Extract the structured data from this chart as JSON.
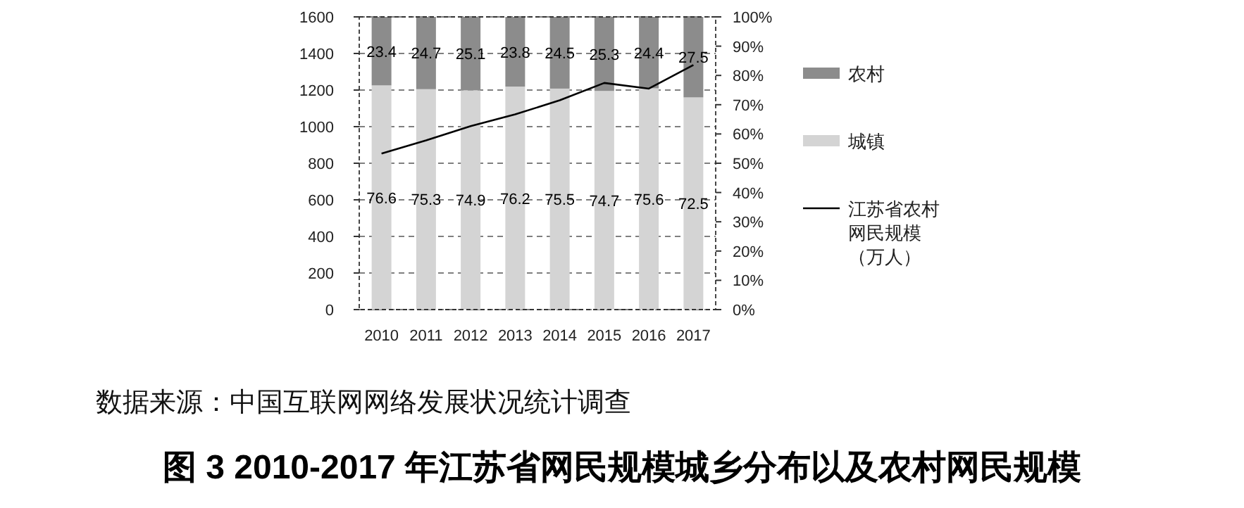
{
  "chart_data": {
    "type": "bar",
    "stacked": true,
    "title": "图 3 2010-2017 年江苏省网民规模城乡分布以及农村网民规模",
    "annotations": [
      "数据来源：中国互联网网络发展状况统计调查"
    ],
    "categories": [
      "2010",
      "2011",
      "2012",
      "2013",
      "2014",
      "2015",
      "2016",
      "2017"
    ],
    "series": [
      {
        "name": "城镇",
        "color": "#d4d4d4",
        "axis": "y2",
        "values": [
          76.6,
          75.3,
          74.9,
          76.2,
          75.5,
          74.7,
          75.6,
          72.5
        ],
        "value_labels": [
          "76.6",
          "75.3",
          "74.9",
          "76.2",
          "75.5",
          "74.7",
          "75.6",
          "72.5"
        ]
      },
      {
        "name": "农村",
        "color": "#8c8c8c",
        "axis": "y2",
        "values": [
          23.4,
          24.7,
          25.1,
          23.8,
          24.5,
          25.3,
          24.4,
          27.5
        ],
        "value_labels": [
          "23.4",
          "24.7",
          "25.1",
          "23.8",
          "24.5",
          "25.3",
          "24.4",
          "27.5"
        ]
      },
      {
        "name": "江苏省农村网民规模（万人）",
        "type": "line",
        "color": "#000000",
        "values": [
          853,
          925,
          1003,
          1067,
          1144,
          1239,
          1208,
          1337
        ]
      }
    ],
    "ylim": [
      0,
      1600
    ],
    "yticks": [
      0,
      200,
      400,
      600,
      800,
      1000,
      1200,
      1400,
      1600
    ],
    "y2lim": [
      0,
      100
    ],
    "y2ticks": [
      {
        "value": 0,
        "label": "0%"
      },
      {
        "value": 10,
        "label": "10%"
      },
      {
        "value": 20,
        "label": "20%"
      },
      {
        "value": 30,
        "label": "30%"
      },
      {
        "value": 40,
        "label": "40%"
      },
      {
        "value": 50,
        "label": "50%"
      },
      {
        "value": 60,
        "label": "60%"
      },
      {
        "value": 70,
        "label": "70%"
      },
      {
        "value": 80,
        "label": "80%"
      },
      {
        "value": 90,
        "label": "90%"
      },
      {
        "value": 100,
        "label": "100%"
      }
    ],
    "grid": "y",
    "legend": "right"
  }
}
